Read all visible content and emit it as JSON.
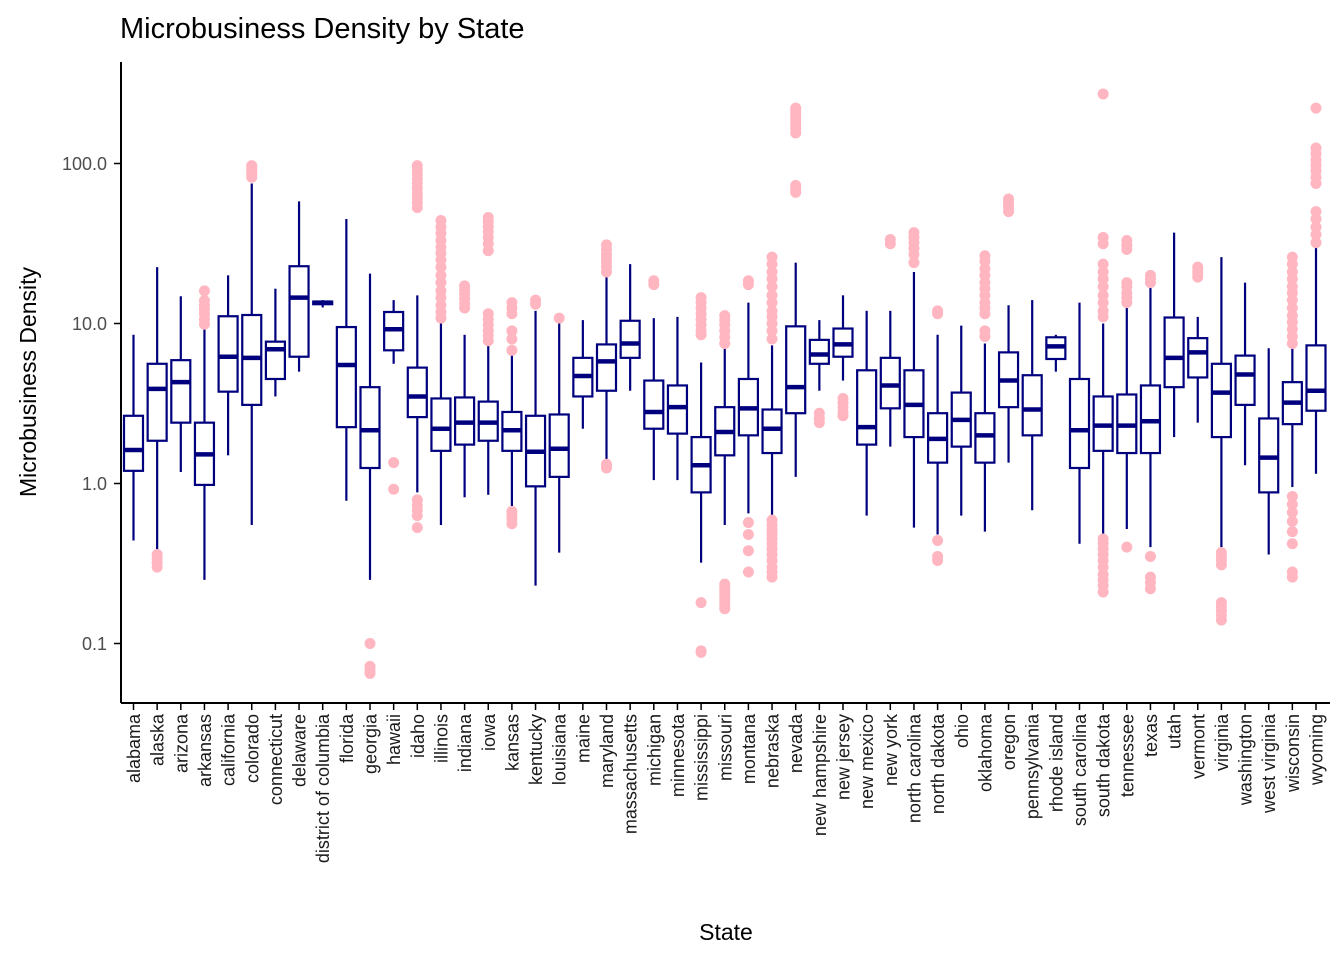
{
  "chart_data": {
    "type": "boxplot",
    "title": "Microbusiness Density by State",
    "xlabel": "State",
    "ylabel": "Microbusiness Density",
    "yscale": "log10",
    "ylim": [
      0.04,
      400
    ],
    "yticks": [
      0.1,
      1,
      10,
      100
    ],
    "ytick_labels": [
      "0.1",
      "1.0",
      "10.0",
      "100.0"
    ],
    "grid": false,
    "colors": {
      "box": "#00007f",
      "outlier": "#ffb6c1",
      "axis": "#000000"
    },
    "series": [
      {
        "name": "alabama",
        "q1": 1.2,
        "median": 1.62,
        "q3": 2.65,
        "whisker_low": 0.44,
        "whisker_high": 8.5,
        "outliers": []
      },
      {
        "name": "alaska",
        "q1": 1.85,
        "median": 3.9,
        "q3": 5.6,
        "whisker_low": 0.38,
        "whisker_high": 22.5,
        "outliers": [
          0.3,
          0.32,
          0.34,
          0.36
        ]
      },
      {
        "name": "arizona",
        "q1": 2.4,
        "median": 4.3,
        "q3": 5.9,
        "whisker_low": 1.18,
        "whisker_high": 14.8,
        "outliers": []
      },
      {
        "name": "arkansas",
        "q1": 0.98,
        "median": 1.52,
        "q3": 2.4,
        "whisker_low": 0.25,
        "whisker_high": 9.5,
        "outliers": [
          9.9,
          10.6,
          11.5,
          12.3,
          13.0,
          13.9,
          16.0
        ]
      },
      {
        "name": "california",
        "q1": 3.75,
        "median": 6.2,
        "q3": 11.1,
        "whisker_low": 1.5,
        "whisker_high": 20.0,
        "outliers": []
      },
      {
        "name": "colorado",
        "q1": 3.1,
        "median": 6.1,
        "q3": 11.3,
        "whisker_low": 0.55,
        "whisker_high": 75.0,
        "outliers": [
          82.0,
          85.0,
          88.0,
          91.0,
          94.0,
          97.0
        ]
      },
      {
        "name": "connecticut",
        "q1": 4.5,
        "median": 6.9,
        "q3": 7.7,
        "whisker_low": 3.5,
        "whisker_high": 16.5,
        "outliers": []
      },
      {
        "name": "delaware",
        "q1": 6.2,
        "median": 14.5,
        "q3": 22.8,
        "whisker_low": 5.0,
        "whisker_high": 58.0,
        "outliers": []
      },
      {
        "name": "district of columbia",
        "q1": 13.2,
        "median": 13.5,
        "q3": 13.7,
        "whisker_low": 12.6,
        "whisker_high": 14.0,
        "outliers": []
      },
      {
        "name": "florida",
        "q1": 2.25,
        "median": 5.5,
        "q3": 9.5,
        "whisker_low": 0.78,
        "whisker_high": 45.0,
        "outliers": []
      },
      {
        "name": "georgia",
        "q1": 1.25,
        "median": 2.15,
        "q3": 4.0,
        "whisker_low": 0.25,
        "whisker_high": 20.5,
        "outliers": [
          0.065,
          0.068,
          0.072,
          0.1
        ]
      },
      {
        "name": "hawaii",
        "q1": 6.8,
        "median": 9.2,
        "q3": 11.8,
        "whisker_low": 5.6,
        "whisker_high": 14.0,
        "outliers": [
          0.92,
          1.35
        ]
      },
      {
        "name": "idaho",
        "q1": 2.6,
        "median": 3.5,
        "q3": 5.3,
        "whisker_low": 0.88,
        "whisker_high": 15.0,
        "outliers": [
          0.53,
          0.63,
          0.68,
          0.73,
          0.79,
          53.0,
          57.0,
          61.0,
          65.0,
          70.0,
          75.0,
          80.0,
          86.0,
          92.0,
          97.0
        ]
      },
      {
        "name": "illinois",
        "q1": 1.6,
        "median": 2.2,
        "q3": 3.4,
        "whisker_low": 0.55,
        "whisker_high": 10.0,
        "outliers": [
          10.8,
          11.8,
          13.0,
          14.5,
          16.0,
          18.0,
          20.0,
          22.5,
          25.0,
          27.5,
          30.0,
          33.0,
          36.5,
          40.0,
          44.0
        ]
      },
      {
        "name": "indiana",
        "q1": 1.75,
        "median": 2.4,
        "q3": 3.45,
        "whisker_low": 0.82,
        "whisker_high": 8.5,
        "outliers": [
          12.5,
          13.3,
          14.2,
          15.2,
          16.2,
          17.2
        ]
      },
      {
        "name": "iowa",
        "q1": 1.85,
        "median": 2.4,
        "q3": 3.25,
        "whisker_low": 0.85,
        "whisker_high": 7.5,
        "outliers": [
          7.8,
          8.4,
          9.0,
          9.8,
          10.6,
          11.5,
          28.5,
          31.5,
          34.5,
          37.5,
          40.5,
          43.5,
          46.0
        ]
      },
      {
        "name": "kansas",
        "q1": 1.6,
        "median": 2.15,
        "q3": 2.8,
        "whisker_low": 0.68,
        "whisker_high": 6.3,
        "outliers": [
          0.56,
          0.6,
          0.64,
          0.67,
          6.8,
          8.0,
          9.0,
          11.5,
          12.5,
          13.5
        ]
      },
      {
        "name": "kentucky",
        "q1": 0.96,
        "median": 1.58,
        "q3": 2.65,
        "whisker_low": 0.23,
        "whisker_high": 12.0,
        "outliers": [
          13.2,
          14.0
        ]
      },
      {
        "name": "louisiana",
        "q1": 1.1,
        "median": 1.65,
        "q3": 2.7,
        "whisker_low": 0.37,
        "whisker_high": 10.5,
        "outliers": [
          10.8
        ]
      },
      {
        "name": "maine",
        "q1": 3.5,
        "median": 4.7,
        "q3": 6.1,
        "whisker_low": 2.2,
        "whisker_high": 10.5,
        "outliers": []
      },
      {
        "name": "maryland",
        "q1": 3.8,
        "median": 5.8,
        "q3": 7.4,
        "whisker_low": 1.4,
        "whisker_high": 20.0,
        "outliers": [
          1.25,
          1.32,
          21.0,
          22.5,
          24.0,
          25.5,
          27.0,
          29.0,
          31.0
        ]
      },
      {
        "name": "massachusetts",
        "q1": 6.1,
        "median": 7.5,
        "q3": 10.4,
        "whisker_low": 3.8,
        "whisker_high": 23.5,
        "outliers": []
      },
      {
        "name": "michigan",
        "q1": 2.2,
        "median": 2.8,
        "q3": 4.4,
        "whisker_low": 1.05,
        "whisker_high": 10.8,
        "outliers": [
          17.5,
          18.5
        ]
      },
      {
        "name": "minnesota",
        "q1": 2.05,
        "median": 3.0,
        "q3": 4.1,
        "whisker_low": 1.05,
        "whisker_high": 11.0,
        "outliers": []
      },
      {
        "name": "mississippi",
        "q1": 0.88,
        "median": 1.3,
        "q3": 1.95,
        "whisker_low": 0.32,
        "whisker_high": 5.7,
        "outliers": [
          0.088,
          0.09,
          0.18,
          8.5,
          9.0,
          9.8,
          10.6,
          11.5,
          12.5,
          13.5,
          14.5
        ]
      },
      {
        "name": "missouri",
        "q1": 1.5,
        "median": 2.1,
        "q3": 3.0,
        "whisker_low": 0.55,
        "whisker_high": 7.0,
        "outliers": [
          0.165,
          0.175,
          0.185,
          0.195,
          0.205,
          0.215,
          0.225,
          0.235,
          7.5,
          8.2,
          9.0,
          9.8,
          10.5,
          11.2
        ]
      },
      {
        "name": "montana",
        "q1": 2.0,
        "median": 2.95,
        "q3": 4.5,
        "whisker_low": 0.65,
        "whisker_high": 13.5,
        "outliers": [
          0.28,
          0.38,
          0.48,
          0.57,
          17.5,
          18.5
        ]
      },
      {
        "name": "nebraska",
        "q1": 1.55,
        "median": 2.2,
        "q3": 2.9,
        "whisker_low": 0.6,
        "whisker_high": 7.3,
        "outliers": [
          0.26,
          0.28,
          0.3,
          0.33,
          0.36,
          0.39,
          0.42,
          0.45,
          0.48,
          0.51,
          0.55,
          0.59,
          8.0,
          9.0,
          10.0,
          11.0,
          12.0,
          13.5,
          15.0,
          17.0,
          19.0,
          21.0,
          23.5,
          26.0
        ]
      },
      {
        "name": "nevada",
        "q1": 2.75,
        "median": 4.0,
        "q3": 9.6,
        "whisker_low": 1.1,
        "whisker_high": 24.0,
        "outliers": [
          66.0,
          70.0,
          73.0,
          155.0,
          165.0,
          175.0,
          185.0,
          195.0,
          205.0,
          215.0,
          222.0
        ]
      },
      {
        "name": "new hampshire",
        "q1": 5.6,
        "median": 6.4,
        "q3": 7.9,
        "whisker_low": 3.8,
        "whisker_high": 10.5,
        "outliers": [
          2.4,
          2.55,
          2.75
        ]
      },
      {
        "name": "new jersey",
        "q1": 6.2,
        "median": 7.4,
        "q3": 9.3,
        "whisker_low": 4.4,
        "whisker_high": 15.0,
        "outliers": [
          2.65,
          2.8,
          3.0,
          3.2,
          3.4
        ]
      },
      {
        "name": "new mexico",
        "q1": 1.75,
        "median": 2.25,
        "q3": 5.1,
        "whisker_low": 0.63,
        "whisker_high": 12.0,
        "outliers": []
      },
      {
        "name": "new york",
        "q1": 2.95,
        "median": 4.1,
        "q3": 6.1,
        "whisker_low": 1.7,
        "whisker_high": 12.0,
        "outliers": [
          31.5,
          33.5
        ]
      },
      {
        "name": "north carolina",
        "q1": 1.95,
        "median": 3.1,
        "q3": 5.1,
        "whisker_low": 0.53,
        "whisker_high": 21.0,
        "outliers": [
          24.0,
          27.0,
          29.5,
          32.0,
          34.5,
          37.0
        ]
      },
      {
        "name": "north dakota",
        "q1": 1.35,
        "median": 1.9,
        "q3": 2.75,
        "whisker_low": 0.48,
        "whisker_high": 8.5,
        "outliers": [
          0.33,
          0.35,
          0.44,
          11.5,
          12.0
        ]
      },
      {
        "name": "ohio",
        "q1": 1.7,
        "median": 2.5,
        "q3": 3.7,
        "whisker_low": 0.63,
        "whisker_high": 9.7,
        "outliers": []
      },
      {
        "name": "oklahoma",
        "q1": 1.35,
        "median": 2.0,
        "q3": 2.75,
        "whisker_low": 0.5,
        "whisker_high": 7.5,
        "outliers": [
          8.3,
          9.0,
          11.5,
          12.5,
          13.5,
          15.0,
          16.5,
          18.0,
          20.0,
          22.0,
          24.5,
          26.5
        ]
      },
      {
        "name": "oregon",
        "q1": 3.0,
        "median": 4.4,
        "q3": 6.6,
        "whisker_low": 1.35,
        "whisker_high": 13.0,
        "outliers": [
          50.0,
          53.0,
          56.0,
          58.0,
          60.0
        ]
      },
      {
        "name": "pennsylvania",
        "q1": 2.0,
        "median": 2.9,
        "q3": 4.75,
        "whisker_low": 0.68,
        "whisker_high": 14.0,
        "outliers": []
      },
      {
        "name": "rhode island",
        "q1": 6.0,
        "median": 7.2,
        "q3": 8.2,
        "whisker_low": 5.0,
        "whisker_high": 8.5,
        "outliers": []
      },
      {
        "name": "south carolina",
        "q1": 1.25,
        "median": 2.15,
        "q3": 4.5,
        "whisker_low": 0.42,
        "whisker_high": 13.5,
        "outliers": []
      },
      {
        "name": "south dakota",
        "q1": 1.6,
        "median": 2.3,
        "q3": 3.5,
        "whisker_low": 0.48,
        "whisker_high": 10.0,
        "outliers": [
          0.21,
          0.23,
          0.25,
          0.27,
          0.3,
          0.33,
          0.36,
          0.39,
          0.42,
          0.45,
          11.0,
          12.0,
          13.5,
          15.0,
          17.0,
          19.0,
          21.0,
          23.5,
          31.5,
          34.5,
          272.0
        ]
      },
      {
        "name": "tennessee",
        "q1": 1.55,
        "median": 2.3,
        "q3": 3.6,
        "whisker_low": 0.52,
        "whisker_high": 12.5,
        "outliers": [
          0.4,
          13.5,
          14.5,
          15.5,
          17.0,
          18.0,
          29.0,
          31.0,
          33.0
        ]
      },
      {
        "name": "texas",
        "q1": 1.55,
        "median": 2.45,
        "q3": 4.1,
        "whisker_low": 0.4,
        "whisker_high": 17.0,
        "outliers": [
          0.22,
          0.24,
          0.26,
          0.35,
          18.0,
          19.0,
          20.0
        ]
      },
      {
        "name": "utah",
        "q1": 4.0,
        "median": 6.1,
        "q3": 10.9,
        "whisker_low": 1.95,
        "whisker_high": 37.0,
        "outliers": []
      },
      {
        "name": "vermont",
        "q1": 4.6,
        "median": 6.6,
        "q3": 8.1,
        "whisker_low": 2.4,
        "whisker_high": 11.0,
        "outliers": [
          19.5,
          20.5,
          21.5,
          22.5
        ]
      },
      {
        "name": "virginia",
        "q1": 1.95,
        "median": 3.7,
        "q3": 5.6,
        "whisker_low": 0.4,
        "whisker_high": 26.0,
        "outliers": [
          0.14,
          0.15,
          0.16,
          0.17,
          0.18,
          0.31,
          0.33,
          0.35,
          0.37
        ]
      },
      {
        "name": "washington",
        "q1": 3.1,
        "median": 4.8,
        "q3": 6.3,
        "whisker_low": 1.3,
        "whisker_high": 18.0,
        "outliers": []
      },
      {
        "name": "west virginia",
        "q1": 0.88,
        "median": 1.45,
        "q3": 2.55,
        "whisker_low": 0.36,
        "whisker_high": 7.0,
        "outliers": []
      },
      {
        "name": "wisconsin",
        "q1": 2.35,
        "median": 3.2,
        "q3": 4.3,
        "whisker_low": 0.95,
        "whisker_high": 7.0,
        "outliers": [
          0.26,
          0.28,
          0.42,
          0.5,
          0.58,
          0.66,
          0.74,
          0.83,
          7.5,
          8.3,
          9.2,
          10.2,
          11.2,
          12.5,
          14.0,
          15.5,
          17.0,
          19.0,
          21.0,
          23.5,
          26.0
        ]
      },
      {
        "name": "wyoming",
        "q1": 2.85,
        "median": 3.8,
        "q3": 7.3,
        "whisker_low": 1.15,
        "whisker_high": 30.0,
        "outliers": [
          32.0,
          36.0,
          40.0,
          45.0,
          50.0,
          75.0,
          82.0,
          90.0,
          97.0,
          105.0,
          115.0,
          125.0,
          222.0
        ]
      }
    ]
  }
}
